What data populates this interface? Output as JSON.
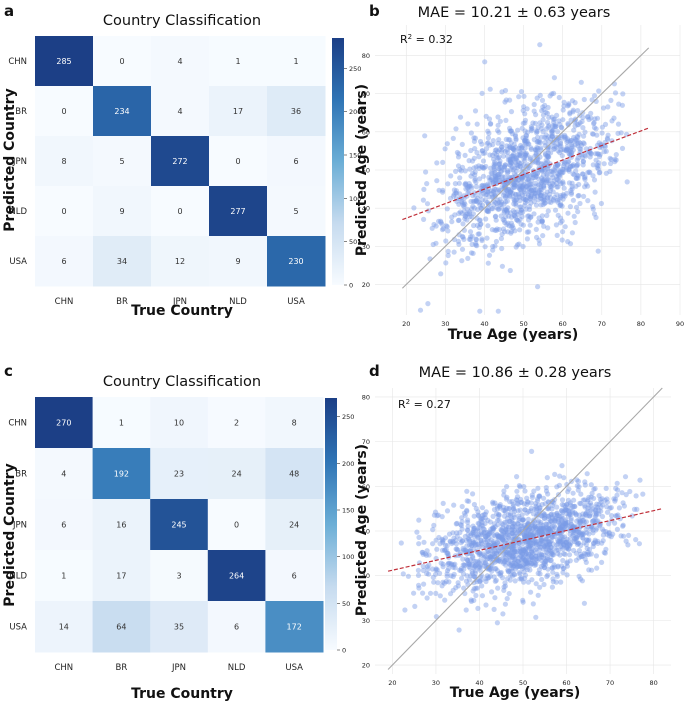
{
  "chart_data": [
    {
      "panel": "a",
      "type": "heatmap",
      "title": "Country Classification",
      "xlabel": "True Country",
      "ylabel": "Predicted Country",
      "x_categories": [
        "CHN",
        "BR",
        "JPN",
        "NLD",
        "USA"
      ],
      "y_categories": [
        "CHN",
        "BR",
        "JPN",
        "NLD",
        "USA"
      ],
      "matrix": [
        [
          285,
          0,
          4,
          1,
          1
        ],
        [
          0,
          234,
          4,
          17,
          36
        ],
        [
          8,
          5,
          272,
          0,
          6
        ],
        [
          0,
          9,
          0,
          277,
          5
        ],
        [
          6,
          34,
          12,
          9,
          230
        ]
      ],
      "colorbar_ticks": [
        0,
        50,
        100,
        150,
        200,
        250
      ],
      "vmin": 0,
      "vmax": 285
    },
    {
      "panel": "b",
      "type": "scatter",
      "title": "MAE = 10.21 ± 0.63 years",
      "annotation": "R",
      "annotation_sup": "2",
      "annotation_value": " = 0.32",
      "xlabel": "True Age (years)",
      "ylabel": "Predicted Age (years)",
      "xlim": [
        12,
        90
      ],
      "ylim": [
        12,
        88
      ],
      "xticks": [
        20,
        30,
        40,
        50,
        60,
        70,
        80,
        90
      ],
      "yticks": [
        20,
        30,
        40,
        50,
        60,
        70,
        80
      ],
      "identity_line": [
        [
          19,
          19
        ],
        [
          82,
          82
        ]
      ],
      "fit_line": [
        [
          19,
          37
        ],
        [
          82,
          61
        ]
      ],
      "n_points": 1300,
      "x_range": [
        19,
        82
      ],
      "scatter_sd": 8.5,
      "grid": true
    },
    {
      "panel": "c",
      "type": "heatmap",
      "title": "Country Classification",
      "xlabel": "True Country",
      "ylabel": "Predicted Country",
      "x_categories": [
        "CHN",
        "BR",
        "JPN",
        "NLD",
        "USA"
      ],
      "y_categories": [
        "CHN",
        "BR",
        "JPN",
        "NLD",
        "USA"
      ],
      "matrix": [
        [
          270,
          1,
          10,
          2,
          8
        ],
        [
          4,
          192,
          23,
          24,
          48
        ],
        [
          6,
          16,
          245,
          0,
          24
        ],
        [
          1,
          17,
          3,
          264,
          6
        ],
        [
          14,
          64,
          35,
          6,
          172
        ]
      ],
      "colorbar_ticks": [
        0,
        50,
        100,
        150,
        200,
        250
      ],
      "vmin": 0,
      "vmax": 270
    },
    {
      "panel": "d",
      "type": "scatter",
      "title": "MAE = 10.86 ± 0.28 years",
      "annotation": "R",
      "annotation_sup": "2",
      "annotation_value": " = 0.27",
      "xlabel": "True Age (years)",
      "ylabel": "Predicted Age (years)",
      "xlim": [
        16,
        84
      ],
      "ylim": [
        18,
        82
      ],
      "xticks": [
        20,
        30,
        40,
        50,
        60,
        70,
        80
      ],
      "yticks": [
        20,
        30,
        40,
        50,
        60,
        70,
        80
      ],
      "identity_line": [
        [
          19,
          19
        ],
        [
          82,
          82
        ]
      ],
      "fit_line": [
        [
          19,
          41
        ],
        [
          82,
          55
        ]
      ],
      "n_points": 1500,
      "x_range": [
        19,
        82
      ],
      "scatter_sd": 5.0,
      "grid": true
    }
  ],
  "colors": {
    "heat_low": "#f7fbff",
    "heat_high": "#1c3f86",
    "point": "#7a9be6",
    "identity": "#a8a8a8",
    "fit": "#c0303a",
    "grid": "#e6e6e6"
  }
}
